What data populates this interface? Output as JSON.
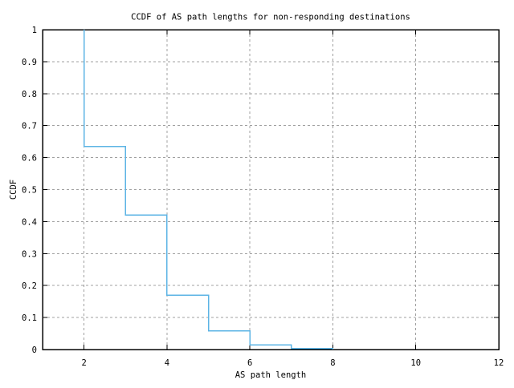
{
  "chart_data": {
    "type": "line",
    "subtype": "step-ccdf",
    "step_mode": "post",
    "title": "CCDF of AS path lengths for non-responding destinations",
    "xlabel": "AS path length",
    "ylabel": "CCDF",
    "xlim": [
      1,
      12
    ],
    "ylim": [
      0,
      1
    ],
    "x_ticks": [
      2,
      4,
      6,
      8,
      10,
      12
    ],
    "y_tick_values": [
      0,
      0.1,
      0.2,
      0.3,
      0.4,
      0.5,
      0.6,
      0.7,
      0.8,
      0.9,
      1
    ],
    "y_tick_labels": [
      "0",
      "0.1",
      "0.2",
      "0.3",
      "0.4",
      "0.5",
      "0.6",
      "0.7",
      "0.8",
      "0.9",
      "1"
    ],
    "grid": true,
    "grid_style": "dashed",
    "legend": "none",
    "series": [
      {
        "color": "#5db4e5",
        "steps": [
          {
            "x": 2,
            "from": 1.0,
            "to": 0.635
          },
          {
            "x": 3,
            "from": 0.635,
            "to": 0.42
          },
          {
            "x": 4,
            "from": 0.42,
            "to": 0.17
          },
          {
            "x": 5,
            "from": 0.17,
            "to": 0.058
          },
          {
            "x": 6,
            "from": 0.058,
            "to": 0.015
          },
          {
            "x": 7,
            "from": 0.015,
            "to": 0.003
          },
          {
            "x": 8,
            "from": 0.003,
            "to": 0.0
          }
        ]
      }
    ]
  },
  "colors": {
    "background": "#ffffff",
    "border": "#000000",
    "grid": "#a0a0a0",
    "text": "#000000",
    "line": "#5db4e5"
  }
}
